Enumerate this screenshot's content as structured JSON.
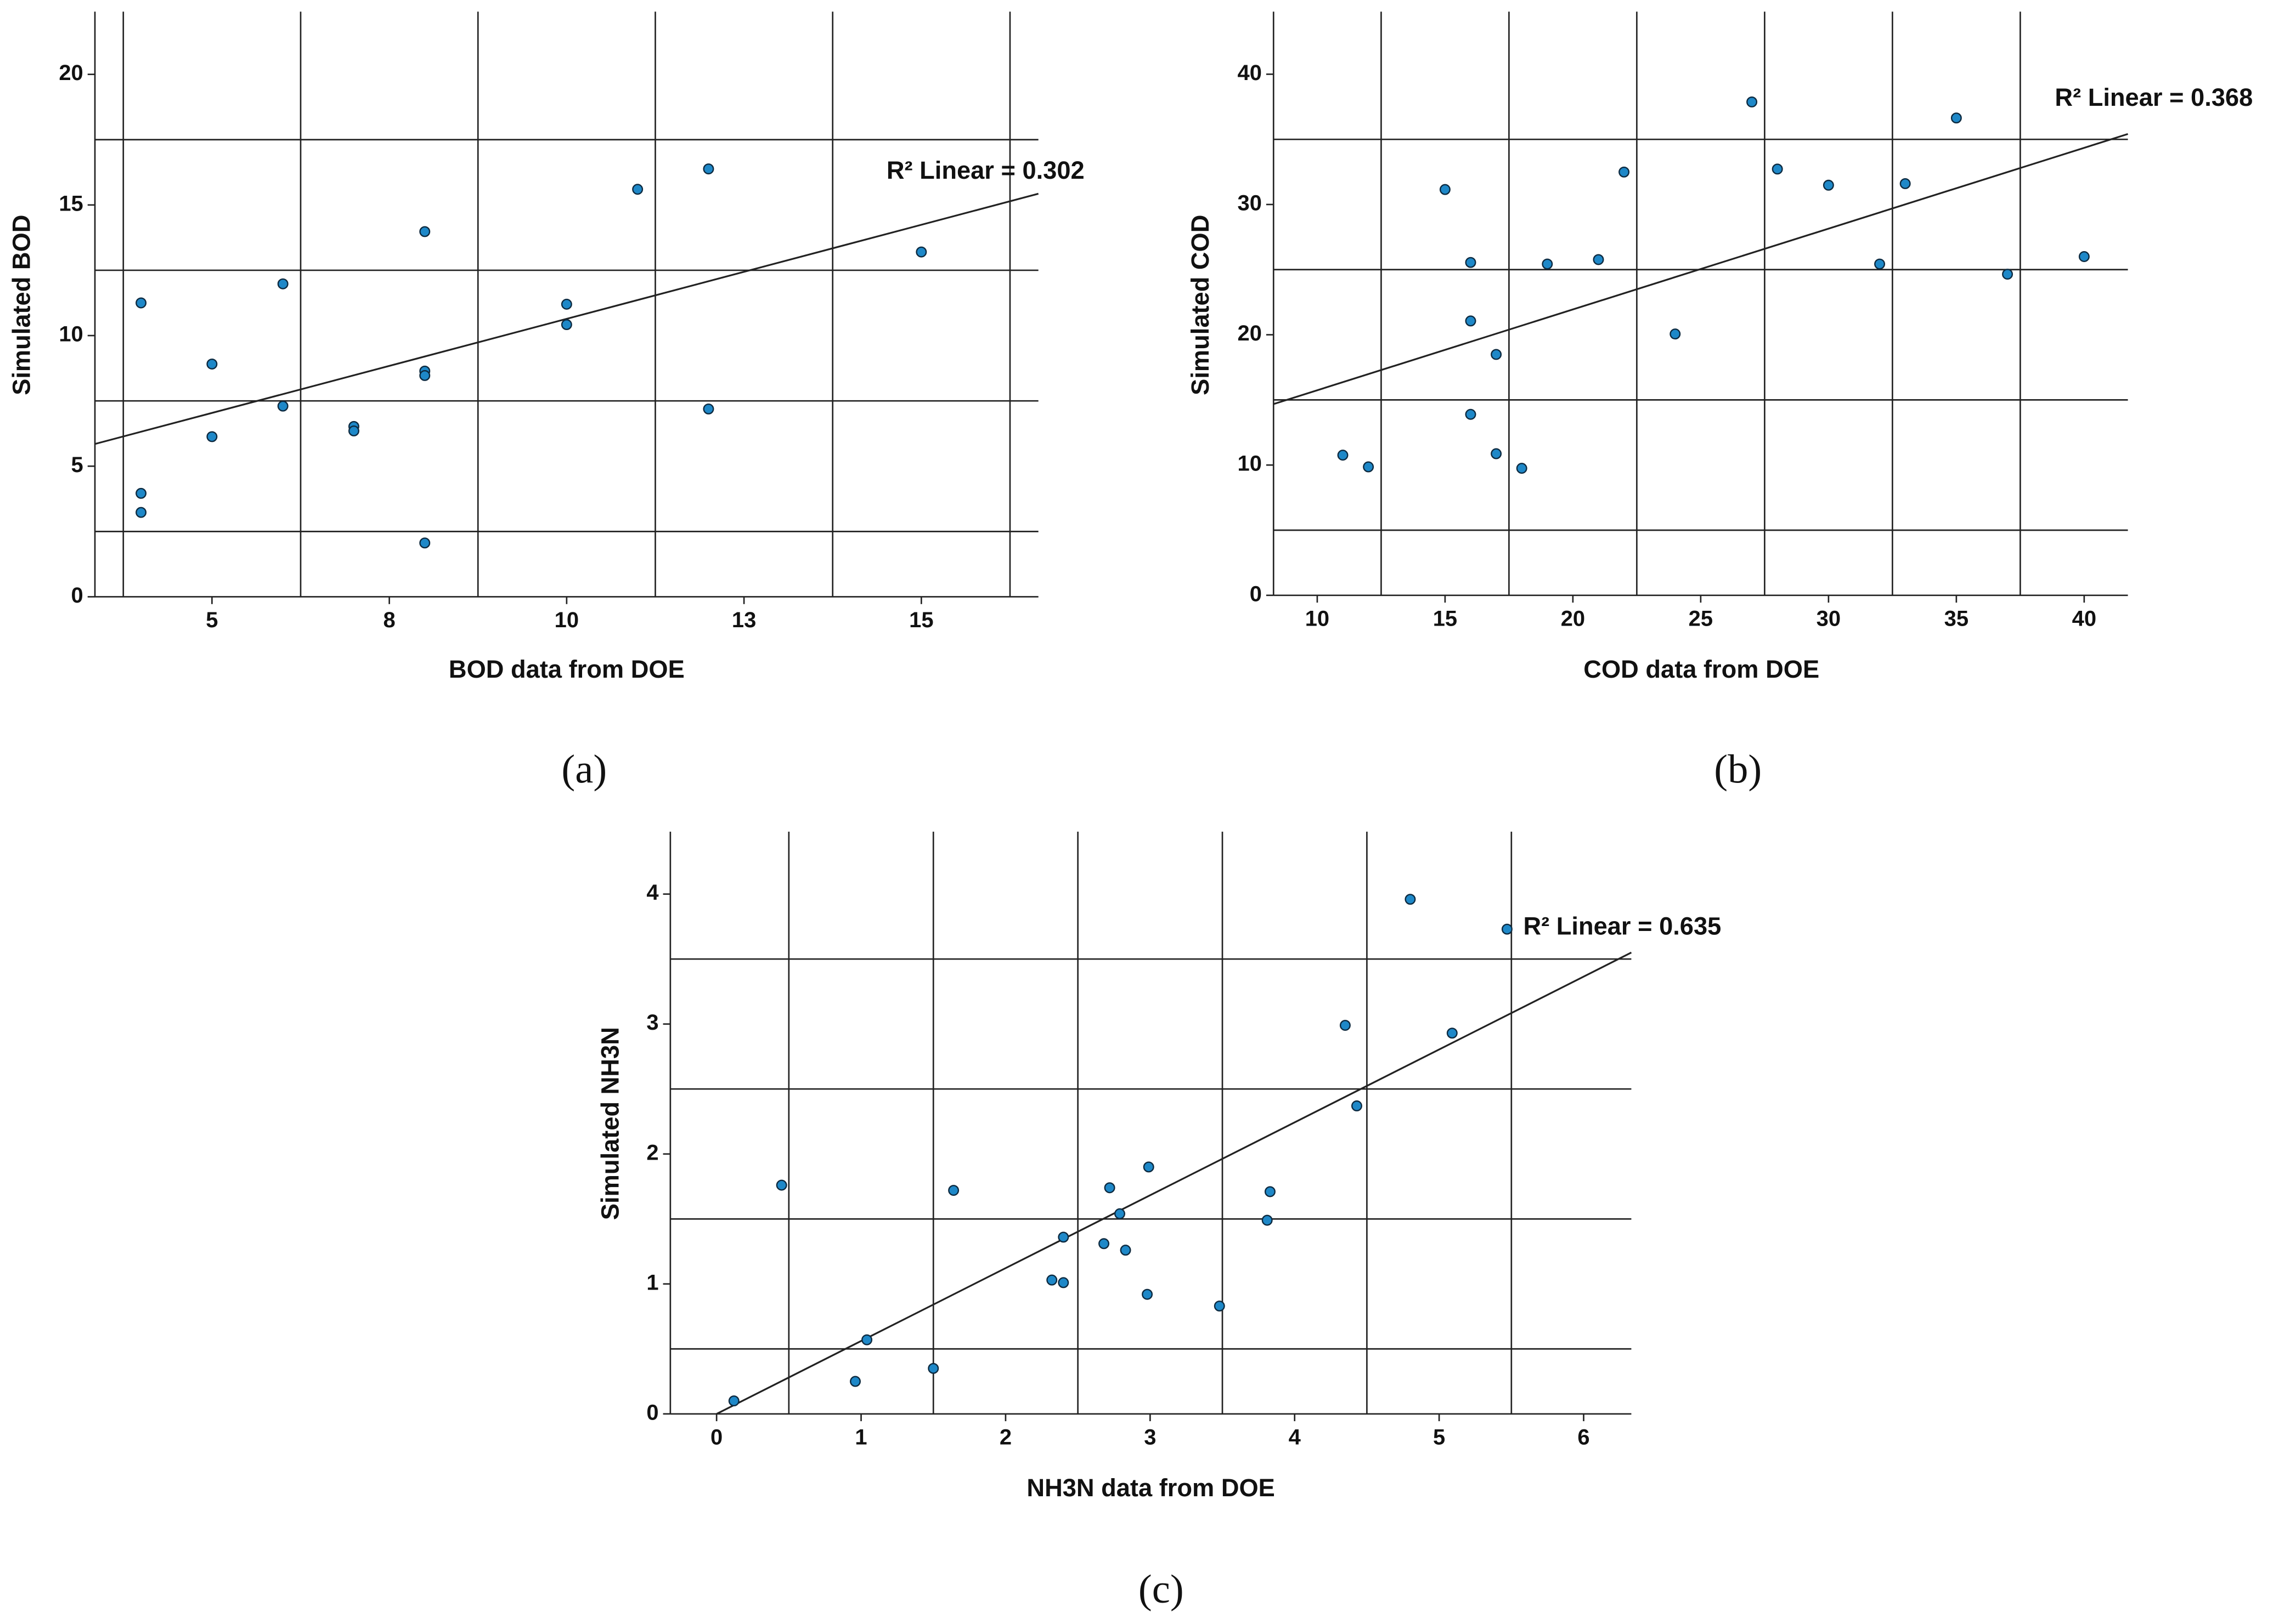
{
  "chart_data": [
    {
      "type": "scatter",
      "label": "(a)",
      "x_label": "BOD data from DOE",
      "y_label": "Simulated BOD",
      "annotation": "R² Linear = 0.302",
      "color": "#1e88c8",
      "x": [
        4,
        4,
        4,
        5,
        5,
        6,
        6,
        7,
        7,
        8,
        8,
        8,
        8,
        10,
        10,
        11,
        12,
        12,
        15
      ],
      "values": [
        11.25,
        3.96,
        3.23,
        8.91,
        6.13,
        11.98,
        7.3,
        6.52,
        6.35,
        13.98,
        8.64,
        8.47,
        2.06,
        11.2,
        10.42,
        15.6,
        16.38,
        7.19,
        13.2
      ],
      "xlim": [
        3.35,
        16.65
      ],
      "ylim": [
        0,
        22.4
      ],
      "xticks": [
        5,
        {
          "value": 7.5,
          "label": "8"
        },
        10,
        {
          "value": 12.5,
          "label": "13"
        },
        15
      ],
      "yticks": [
        0,
        5,
        10,
        15,
        20
      ],
      "xgrid": [
        3.75,
        6.25,
        8.75,
        11.25,
        13.75,
        16.25
      ],
      "ygrid": [
        2.5,
        7.5,
        12.5,
        17.5
      ],
      "trendline": {
        "x": [
          3.35,
          16.65
        ],
        "values": [
          5.85,
          15.43
        ]
      }
    },
    {
      "type": "scatter",
      "label": "(b)",
      "x_label": "COD data from DOE",
      "y_label": "Simulated COD",
      "annotation": "R² Linear = 0.368",
      "color": "#1e88c8",
      "x": [
        11,
        12,
        15,
        16,
        16,
        16,
        17,
        17,
        18,
        19,
        21,
        22,
        24,
        27,
        28,
        30,
        32,
        33,
        35,
        37,
        40
      ],
      "values": [
        10.76,
        9.86,
        31.15,
        25.55,
        21.06,
        13.89,
        18.49,
        10.87,
        9.75,
        25.43,
        25.77,
        32.49,
        20.06,
        37.87,
        32.72,
        31.48,
        25.43,
        31.6,
        36.64,
        24.65,
        26.0
      ],
      "xlim": [
        8.29,
        41.71
      ],
      "ylim": [
        0,
        44.8
      ],
      "xticks": [
        10,
        15,
        20,
        25,
        30,
        35,
        40
      ],
      "yticks": [
        0,
        10,
        20,
        30,
        40
      ],
      "xgrid": [
        12.5,
        17.5,
        22.5,
        27.5,
        32.5,
        37.5
      ],
      "ygrid": [
        5,
        15,
        25,
        35
      ],
      "trendline": {
        "x": [
          8.29,
          41.71
        ],
        "values": [
          14.68,
          35.41
        ]
      }
    },
    {
      "type": "scatter",
      "label": "(c)",
      "x_label": "NH3N data from DOE",
      "y_label": "Simulated NH3N",
      "annotation": "R² Linear = 0.635",
      "color": "#1e88c8",
      "x": [
        0.12,
        0.45,
        0.96,
        1.04,
        1.5,
        1.64,
        2.32,
        2.4,
        2.4,
        2.68,
        2.72,
        2.79,
        2.83,
        2.98,
        2.99,
        3.48,
        3.81,
        3.83,
        4.35,
        4.43,
        4.8,
        5.09,
        5.47
      ],
      "values": [
        0.1,
        1.76,
        0.25,
        0.57,
        0.35,
        1.72,
        1.03,
        1.36,
        1.01,
        1.31,
        1.74,
        1.54,
        1.26,
        0.92,
        1.9,
        0.83,
        1.49,
        1.71,
        2.99,
        2.37,
        3.96,
        2.93,
        3.73
      ],
      "xlim": [
        -0.32,
        6.33
      ],
      "ylim": [
        0,
        4.48
      ],
      "xticks": [
        0,
        1,
        2,
        3,
        4,
        5,
        6
      ],
      "yticks": [
        0,
        1,
        2,
        3,
        4
      ],
      "xgrid": [
        0.5,
        1.5,
        2.5,
        3.5,
        4.5,
        5.5
      ],
      "ygrid": [
        0.5,
        1.5,
        2.5,
        3.5
      ],
      "trendline": {
        "x": [
          0,
          6.33
        ],
        "values": [
          0,
          3.55
        ]
      }
    }
  ]
}
